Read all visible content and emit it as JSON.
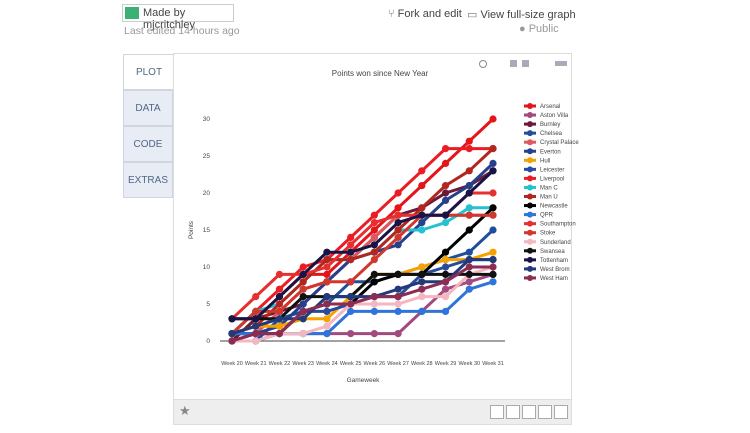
{
  "header": {
    "author": "Made by mjcritchley",
    "edited": "Last edited 14 hours ago",
    "fork": "Fork and edit",
    "view": "View full-size graph",
    "visibility": "Public"
  },
  "tabs": [
    "PLOT",
    "DATA",
    "CODE",
    "EXTRAS"
  ],
  "chart_data": {
    "type": "line",
    "title": "Points won since New Year",
    "x_label": "Gameweek",
    "y_label": "Points",
    "categories": [
      "Week 20",
      "Week 21",
      "Week 22",
      "Week 23",
      "Week 24",
      "Week 25",
      "Week 26",
      "Week 27",
      "Week 28",
      "Week 29",
      "Week 30",
      "Week 31"
    ],
    "ylim": [
      0,
      30
    ],
    "yticks": [
      0,
      5,
      10,
      15,
      20,
      25,
      30
    ],
    "grid": false,
    "series": [
      {
        "name": "Arsenal",
        "color": "#e3151a",
        "values": [
          0,
          3,
          6,
          9,
          9,
          12,
          15,
          18,
          21,
          24,
          27,
          30
        ]
      },
      {
        "name": "Aston Villa",
        "color": "#a14a7f",
        "values": [
          0,
          1,
          1,
          1,
          1,
          1,
          1,
          1,
          4,
          7,
          8,
          9
        ]
      },
      {
        "name": "Burnley",
        "color": "#6b1a3a",
        "values": [
          0,
          3,
          4,
          5,
          8,
          11,
          14,
          17,
          18,
          20,
          21,
          23
        ]
      },
      {
        "name": "Chelsea",
        "color": "#1f4e9c",
        "values": [
          0,
          0,
          3,
          4,
          5,
          8,
          8,
          9,
          10,
          11,
          12,
          15
        ]
      },
      {
        "name": "Crystal Palace",
        "color": "#e0585f",
        "values": [
          1,
          1,
          4,
          7,
          8,
          11,
          14,
          17,
          17,
          17,
          17,
          17
        ]
      },
      {
        "name": "Everton",
        "color": "#27408b",
        "values": [
          0,
          1,
          2,
          5,
          8,
          11,
          12,
          13,
          16,
          19,
          21,
          24
        ]
      },
      {
        "name": "Hull",
        "color": "#f5a100",
        "values": [
          1,
          2,
          2,
          3,
          3,
          6,
          9,
          9,
          10,
          11,
          11,
          12
        ]
      },
      {
        "name": "Leicester",
        "color": "#2a4a9a",
        "values": [
          0,
          0,
          1,
          4,
          4,
          5,
          6,
          6,
          9,
          10,
          11,
          11
        ]
      },
      {
        "name": "Liverpool",
        "color": "#ec1c24",
        "values": [
          1,
          4,
          7,
          10,
          11,
          14,
          17,
          20,
          23,
          26,
          26,
          26
        ]
      },
      {
        "name": "Man C",
        "color": "#23c1d1",
        "values": [
          1,
          4,
          5,
          8,
          11,
          11,
          12,
          15,
          15,
          16,
          18,
          18
        ]
      },
      {
        "name": "Man U",
        "color": "#b3261e",
        "values": [
          1,
          2,
          5,
          8,
          11,
          11,
          12,
          15,
          18,
          21,
          23,
          26
        ]
      },
      {
        "name": "Newcastle",
        "color": "#000000",
        "values": [
          1,
          1,
          1,
          4,
          5,
          5,
          8,
          9,
          9,
          12,
          15,
          18
        ]
      },
      {
        "name": "QPR",
        "color": "#2f74d8",
        "values": [
          1,
          1,
          1,
          1,
          1,
          4,
          4,
          4,
          4,
          4,
          7,
          8
        ]
      },
      {
        "name": "Southampton",
        "color": "#e63030",
        "values": [
          3,
          6,
          9,
          9,
          10,
          13,
          16,
          17,
          17,
          17,
          20,
          20
        ]
      },
      {
        "name": "Stoke",
        "color": "#d0382e",
        "values": [
          1,
          4,
          4,
          7,
          8,
          8,
          11,
          14,
          17,
          17,
          17,
          17
        ]
      },
      {
        "name": "Sunderland",
        "color": "#f4b6c0",
        "values": [
          0,
          0,
          1,
          1,
          2,
          5,
          5,
          5,
          6,
          6,
          9,
          10
        ]
      },
      {
        "name": "Swansea",
        "color": "#111111",
        "values": [
          3,
          3,
          3,
          6,
          6,
          6,
          9,
          9,
          9,
          9,
          9,
          9
        ]
      },
      {
        "name": "Tottenham",
        "color": "#1a1446",
        "values": [
          3,
          3,
          6,
          9,
          12,
          12,
          13,
          16,
          17,
          17,
          20,
          23
        ]
      },
      {
        "name": "West Brom",
        "color": "#233a7a",
        "values": [
          1,
          2,
          3,
          3,
          6,
          6,
          6,
          7,
          8,
          8,
          11,
          11
        ]
      },
      {
        "name": "West Ham",
        "color": "#8d2c52",
        "values": [
          0,
          1,
          1,
          4,
          5,
          5,
          6,
          6,
          7,
          8,
          10,
          10
        ]
      }
    ]
  }
}
